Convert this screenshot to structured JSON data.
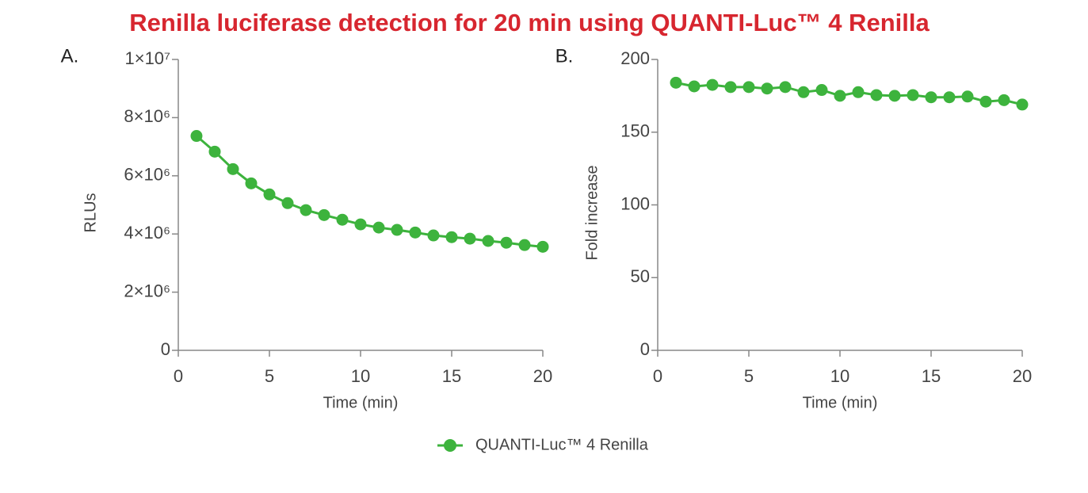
{
  "title": "Renilla luciferase detection for 20 min using QUANTI-Luc™ 4 Renilla",
  "chart_data": [
    {
      "type": "line",
      "label": "A.",
      "xlabel": "Time (min)",
      "ylabel": "RLUs",
      "x": [
        1,
        2,
        3,
        4,
        5,
        6,
        7,
        8,
        9,
        10,
        11,
        12,
        13,
        14,
        15,
        16,
        17,
        18,
        19,
        20
      ],
      "series": [
        {
          "name": "QUANTI-Luc™ 4 Renilla",
          "color": "#3db33d",
          "values": [
            7370000,
            6830000,
            6230000,
            5740000,
            5360000,
            5060000,
            4820000,
            4650000,
            4490000,
            4330000,
            4220000,
            4140000,
            4050000,
            3950000,
            3890000,
            3840000,
            3760000,
            3700000,
            3620000,
            3560000
          ]
        }
      ],
      "xlim": [
        0,
        20
      ],
      "xticks": [
        0,
        5,
        10,
        15,
        20
      ],
      "ylim": [
        0,
        10000000
      ],
      "yticks": [
        0,
        {
          "value": 2000000,
          "label": "2×10⁶"
        },
        {
          "value": 4000000,
          "label": "4×10⁶"
        },
        {
          "value": 6000000,
          "label": "6×10⁶"
        },
        {
          "value": 8000000,
          "label": "8×10⁶"
        },
        {
          "value": 10000000,
          "label": "1×10⁷"
        }
      ]
    },
    {
      "type": "line",
      "label": "B.",
      "xlabel": "Time (min)",
      "ylabel": "Fold increase",
      "x": [
        1,
        2,
        3,
        4,
        5,
        6,
        7,
        8,
        9,
        10,
        11,
        12,
        13,
        14,
        15,
        16,
        17,
        18,
        19,
        20
      ],
      "series": [
        {
          "color": "#3db33d",
          "values": [
            184,
            181.5,
            182.5,
            181,
            181,
            180,
            181,
            177.5,
            179,
            175,
            177.5,
            175.5,
            175,
            175.5,
            174,
            174,
            174.5,
            171,
            172,
            169
          ]
        }
      ],
      "xlim": [
        0,
        20
      ],
      "xticks": [
        0,
        5,
        10,
        15,
        20
      ],
      "ylim": [
        0,
        200
      ],
      "yticks": [
        0,
        50,
        100,
        150,
        200
      ]
    }
  ]
}
